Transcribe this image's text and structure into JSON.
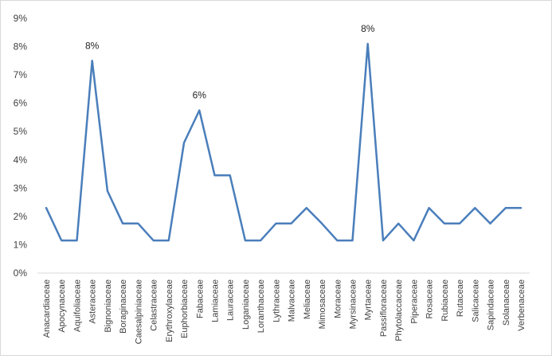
{
  "chart_data": {
    "type": "line",
    "title": "",
    "xlabel": "",
    "ylabel": "",
    "ylim": [
      0,
      9
    ],
    "yticks": [
      "0%",
      "1%",
      "2%",
      "3%",
      "4%",
      "5%",
      "6%",
      "7%",
      "8%",
      "9%"
    ],
    "grid": false,
    "legend": "none",
    "categories": [
      "Anacardiaceae",
      "Apocynaceae",
      "Aquifoliaceae",
      "Asteraceae",
      "Bignoniaceae",
      "Boraginaceae",
      "Caesalpiniaceae",
      "Celastraceae",
      "Erythroxylaceae",
      "Euphorbiaceae",
      "Fabaceae",
      "Lamiaceae",
      "Lauraceae",
      "Loganiaceae",
      "Loranthaceae",
      "Lythraceae",
      "Malvaceae",
      "Meliaceae",
      "Mimosaceae",
      "Moraceae",
      "Myrsinaceae",
      "Myrtaceae",
      "Passifloraceae",
      "Phytolaccaceae",
      "Piperaceae",
      "Rosaceae",
      "Rubiaceae",
      "Rutaceae",
      "Salicaceae",
      "Sapindaceae",
      "Solanaceae",
      "Verbenaceae"
    ],
    "series": [
      {
        "values": [
          2.3,
          1.15,
          1.15,
          7.5,
          2.9,
          1.75,
          1.75,
          1.15,
          1.15,
          4.6,
          5.75,
          3.45,
          3.45,
          1.15,
          1.15,
          1.75,
          1.75,
          2.3,
          1.75,
          1.15,
          1.15,
          8.1,
          1.15,
          1.75,
          1.15,
          2.3,
          1.75,
          1.75,
          2.3,
          1.75,
          2.3,
          2.3
        ],
        "color": "#4a7ebb"
      }
    ],
    "data_labels": [
      {
        "category": "Asteraceae",
        "text": "8%"
      },
      {
        "category": "Fabaceae",
        "text": "6%"
      },
      {
        "category": "Myrtaceae",
        "text": "8%"
      }
    ]
  }
}
